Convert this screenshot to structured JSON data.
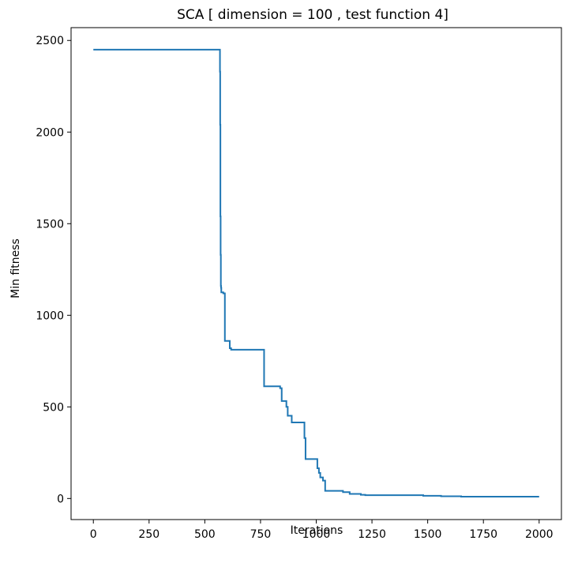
{
  "chart_data": {
    "type": "line",
    "title": "SCA [ dimension = 100 ,  test function 4]",
    "xlabel": "Iterations",
    "ylabel": "Min fitness",
    "xlim": [
      -100,
      2100
    ],
    "ylim": [
      -115,
      2570
    ],
    "xticks": [
      0,
      250,
      500,
      750,
      1000,
      1250,
      1500,
      1750,
      2000
    ],
    "yticks": [
      0,
      500,
      1000,
      1500,
      2000,
      2500
    ],
    "grid": false,
    "line_color": "#1f77b4",
    "series": [
      {
        "x": [
          0,
          568,
          568,
          569,
          569,
          570,
          570,
          571,
          571,
          572,
          572,
          573,
          573,
          574,
          574,
          583,
          583,
          590,
          590,
          612,
          612,
          618,
          618,
          766,
          766,
          838,
          838,
          845,
          845,
          866,
          866,
          872,
          872,
          890,
          890,
          947,
          947,
          952,
          952,
          1005,
          1005,
          1012,
          1012,
          1018,
          1018,
          1030,
          1030,
          1040,
          1040,
          1120,
          1120,
          1150,
          1150,
          1200,
          1200,
          1220,
          1220,
          1480,
          1480,
          1560,
          1560,
          1650,
          1650,
          2000
        ],
        "y": [
          2450,
          2450,
          2330,
          2330,
          2040,
          2040,
          1540,
          1540,
          1330,
          1330,
          1160,
          1160,
          1150,
          1150,
          1125,
          1125,
          1120,
          1120,
          860,
          860,
          820,
          820,
          812,
          812,
          612,
          612,
          602,
          602,
          532,
          532,
          500,
          500,
          452,
          452,
          415,
          415,
          330,
          330,
          215,
          215,
          165,
          165,
          140,
          140,
          115,
          115,
          98,
          98,
          42,
          42,
          35,
          35,
          25,
          25,
          20,
          20,
          18,
          18,
          15,
          15,
          12,
          12,
          10,
          10
        ]
      }
    ]
  }
}
